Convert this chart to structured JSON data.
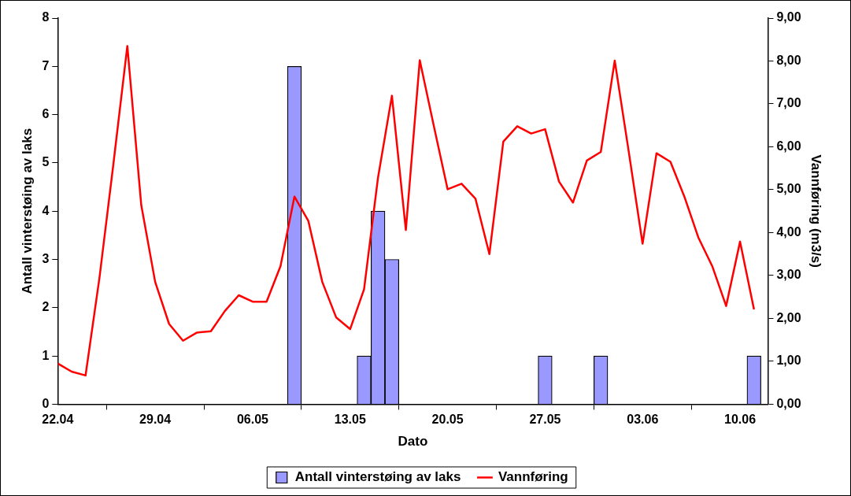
{
  "chart_data": {
    "type": "bar",
    "xlabel": "Dato",
    "ylabel": "Antall vinterstøing av laks",
    "y2label": "Vannføring (m3/s)",
    "xlim": [
      "--04-22",
      "--06-12"
    ],
    "xticks": [
      {
        "value": "--04-22",
        "label": "22.04"
      },
      {
        "value": "--04-29",
        "label": "29.04"
      },
      {
        "value": "--05-06",
        "label": "06.05"
      },
      {
        "value": "--05-13",
        "label": "13.05"
      },
      {
        "value": "--05-20",
        "label": "20.05"
      },
      {
        "value": "--05-27",
        "label": "27.05"
      },
      {
        "value": "--06-03",
        "label": "03.06"
      },
      {
        "value": "--06-10",
        "label": "10.06"
      }
    ],
    "ylim": [
      0,
      8
    ],
    "yticks": [
      0,
      1,
      2,
      3,
      4,
      5,
      6,
      7,
      8
    ],
    "y2lim": [
      0,
      9
    ],
    "y2ticks": [
      {
        "value": 0,
        "label": "0,00"
      },
      {
        "value": 1,
        "label": "1,00"
      },
      {
        "value": 2,
        "label": "2,00"
      },
      {
        "value": 3,
        "label": "3,00"
      },
      {
        "value": 4,
        "label": "4,00"
      },
      {
        "value": 5,
        "label": "5,00"
      },
      {
        "value": 6,
        "label": "6,00"
      },
      {
        "value": 7,
        "label": "7,00"
      },
      {
        "value": 8,
        "label": "8,00"
      },
      {
        "value": 9,
        "label": "9,00"
      }
    ],
    "grid": false,
    "legend": "bottom",
    "marker": "none",
    "line_style": "solid",
    "series": [
      {
        "name": "Antall vinterstøing av laks",
        "color": "#9999ff",
        "x": [
          "--05-09",
          "--05-14",
          "--05-15",
          "--05-16",
          "--05-27",
          "--05-31",
          "--06-11"
        ],
        "values": [
          7,
          1,
          4,
          3,
          1,
          1,
          1
        ]
      },
      {
        "name": "Vannføring",
        "type": "line",
        "axis": "y2",
        "color": "#ff0000",
        "x": [
          "--04-22",
          "--04-23",
          "--04-24",
          "--04-25",
          "--04-26",
          "--04-27",
          "--04-28",
          "--04-29",
          "--04-30",
          "--05-01",
          "--05-02",
          "--05-03",
          "--05-04",
          "--05-05",
          "--05-06",
          "--05-07",
          "--05-08",
          "--05-09",
          "--05-10",
          "--05-11",
          "--05-12",
          "--05-13",
          "--05-14",
          "--05-15",
          "--05-16",
          "--05-17",
          "--05-18",
          "--05-19",
          "--05-20",
          "--05-21",
          "--05-22",
          "--05-23",
          "--05-24",
          "--05-25",
          "--05-26",
          "--05-27",
          "--05-28",
          "--05-29",
          "--05-30",
          "--05-31",
          "--06-01",
          "--06-02",
          "--06-03",
          "--06-04",
          "--06-05",
          "--06-06",
          "--06-07",
          "--06-08",
          "--06-09",
          "--06-10",
          "--06-11"
        ],
        "values": [
          0.95,
          0.76,
          0.67,
          2.95,
          5.6,
          8.35,
          4.64,
          2.85,
          1.87,
          1.48,
          1.67,
          1.7,
          2.17,
          2.54,
          2.39,
          2.39,
          3.22,
          4.84,
          4.27,
          2.85,
          2.02,
          1.75,
          2.68,
          5.28,
          7.19,
          4.06,
          8.02,
          6.5,
          5.01,
          5.14,
          4.79,
          3.5,
          6.12,
          6.48,
          6.31,
          6.41,
          5.19,
          4.7,
          5.68,
          5.88,
          8.01,
          5.9,
          3.74,
          5.85,
          5.65,
          4.84,
          3.89,
          3.22,
          2.29,
          3.79,
          2.21
        ]
      }
    ]
  }
}
